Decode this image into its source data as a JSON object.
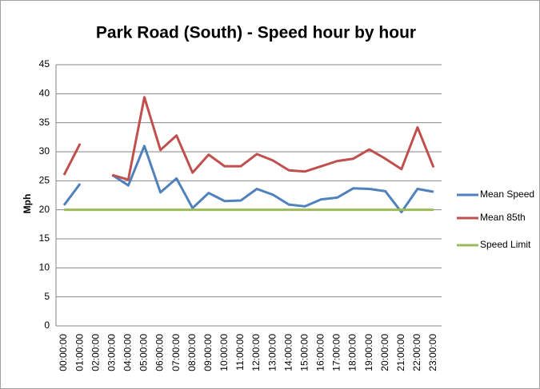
{
  "chart_data": {
    "type": "line",
    "title": "Park Road (South) - Speed hour by hour",
    "y_label": "Mph",
    "categories": [
      "00:00:00",
      "01:00:00",
      "02:00:00",
      "03:00:00",
      "04:00:00",
      "05:00:00",
      "06:00:00",
      "07:00:00",
      "08:00:00",
      "09:00:00",
      "10:00:00",
      "11:00:00",
      "12:00:00",
      "13:00:00",
      "14:00:00",
      "15:00:00",
      "16:00:00",
      "17:00:00",
      "18:00:00",
      "19:00:00",
      "20:00:00",
      "21:00:00",
      "22:00:00",
      "23:00:00"
    ],
    "series": [
      {
        "name": "Mean Speed",
        "color": "#4f81bd",
        "values": [
          20.8,
          24.5,
          null,
          26,
          24.2,
          31,
          23,
          25.4,
          20.3,
          22.9,
          21.5,
          21.6,
          23.6,
          22.6,
          20.9,
          20.6,
          21.8,
          22.1,
          23.7,
          23.6,
          23.2,
          19.6,
          23.6,
          23.1
        ]
      },
      {
        "name": "Mean 85th",
        "color": "#c0504d",
        "values": [
          26,
          31.4,
          null,
          26,
          25.2,
          39.4,
          30.3,
          32.8,
          26.4,
          29.5,
          27.5,
          27.5,
          29.6,
          28.5,
          26.8,
          26.6,
          27.5,
          28.4,
          28.8,
          30.4,
          28.8,
          27,
          34.2,
          27.3
        ]
      },
      {
        "name": "Speed Limit",
        "color": "#9bbb59",
        "values": [
          20,
          20,
          20,
          20,
          20,
          20,
          20,
          20,
          20,
          20,
          20,
          20,
          20,
          20,
          20,
          20,
          20,
          20,
          20,
          20,
          20,
          20,
          20,
          20
        ]
      }
    ],
    "ylim": [
      0,
      45
    ],
    "yticks": [
      0,
      5,
      10,
      15,
      20,
      25,
      30,
      35,
      40,
      45
    ],
    "grid": true,
    "legend": "right"
  }
}
